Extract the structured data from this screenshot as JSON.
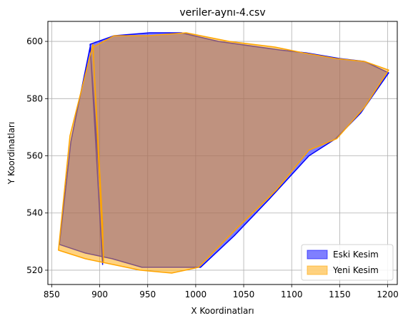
{
  "chart_data": {
    "type": "area",
    "title": "veriler-aynı-4.csv",
    "xlabel": "X Koordinatları",
    "ylabel": "Y Koordinatları",
    "xlim": [
      846,
      1210
    ],
    "ylim": [
      515,
      607
    ],
    "xticks": [
      850,
      900,
      950,
      1000,
      1050,
      1100,
      1150,
      1200
    ],
    "yticks": [
      520,
      540,
      560,
      580,
      600
    ],
    "grid": true,
    "legend_position": "lower-right",
    "series": [
      {
        "name": "Eski Kesim",
        "fill_color": "#0000ff",
        "fill_alpha": 0.5,
        "edge_color": "#0000ff",
        "points": [
          [
            890,
            599
          ],
          [
            915,
            602
          ],
          [
            952,
            603
          ],
          [
            985,
            603
          ],
          [
            1024,
            600
          ],
          [
            1088,
            597
          ],
          [
            1115,
            596
          ],
          [
            1150,
            594
          ],
          [
            1176,
            593
          ],
          [
            1201,
            589
          ],
          [
            1172,
            575
          ],
          [
            1146,
            566
          ],
          [
            1118,
            560
          ],
          [
            1077,
            545
          ],
          [
            1040,
            532
          ],
          [
            1005,
            521
          ],
          [
            944,
            521
          ],
          [
            913,
            524
          ],
          [
            885,
            526
          ],
          [
            858,
            529
          ],
          [
            870,
            565
          ],
          [
            890,
            598
          ],
          [
            903,
            536
          ],
          [
            903,
            522
          ]
        ]
      },
      {
        "name": "Yeni Kesim",
        "fill_color": "#ffa500",
        "fill_alpha": 0.5,
        "edge_color": "#ffa500",
        "points": [
          [
            893,
            598
          ],
          [
            915,
            602
          ],
          [
            950,
            602
          ],
          [
            990,
            603
          ],
          [
            1035,
            600
          ],
          [
            1083,
            598
          ],
          [
            1112,
            596
          ],
          [
            1146,
            594
          ],
          [
            1176,
            593
          ],
          [
            1201,
            590
          ],
          [
            1176,
            577
          ],
          [
            1147,
            566
          ],
          [
            1118,
            562
          ],
          [
            1084,
            548
          ],
          [
            1044,
            535
          ],
          [
            1003,
            521
          ],
          [
            975,
            519
          ],
          [
            942,
            520
          ],
          [
            885,
            524
          ],
          [
            857,
            527
          ],
          [
            869,
            567
          ],
          [
            893,
            599
          ],
          [
            904,
            523
          ],
          [
            903,
            536
          ]
        ]
      }
    ]
  }
}
